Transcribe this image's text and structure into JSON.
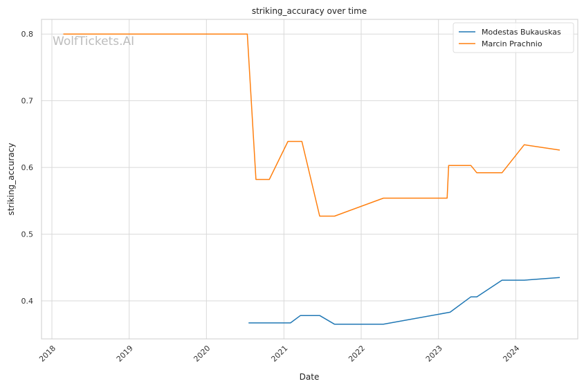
{
  "watermark": "WolfTickets.AI",
  "chart_data": {
    "type": "line",
    "title": "striking_accuracy over time",
    "xlabel": "Date",
    "ylabel": "striking_accuracy",
    "x_type": "date",
    "xlim": [
      "2017-11-13",
      "2024-10-20"
    ],
    "ylim": [
      0.343,
      0.822
    ],
    "x_ticks": [
      "2018",
      "2019",
      "2020",
      "2021",
      "2022",
      "2023",
      "2024"
    ],
    "y_ticks": [
      "0.4",
      "0.5",
      "0.6",
      "0.7",
      "0.8"
    ],
    "grid": true,
    "legend_position": "top-right",
    "series": [
      {
        "name": "Modestas Bukauskas",
        "color": "#1f77b4",
        "points": [
          [
            "2020-07-18",
            0.367
          ],
          [
            "2021-02-01",
            0.367
          ],
          [
            "2021-03-20",
            0.378
          ],
          [
            "2021-06-19",
            0.378
          ],
          [
            "2021-08-28",
            0.365
          ],
          [
            "2022-04-16",
            0.365
          ],
          [
            "2023-02-25",
            0.383
          ],
          [
            "2023-06-03",
            0.406
          ],
          [
            "2023-07-01",
            0.406
          ],
          [
            "2023-10-28",
            0.431
          ],
          [
            "2024-02-10",
            0.431
          ],
          [
            "2024-07-27",
            0.435
          ]
        ]
      },
      {
        "name": "Marcin Prachnio",
        "color": "#ff7f0e",
        "points": [
          [
            "2018-02-24",
            0.8
          ],
          [
            "2020-07-12",
            0.8
          ],
          [
            "2020-08-22",
            0.582
          ],
          [
            "2020-10-24",
            0.582
          ],
          [
            "2021-01-20",
            0.639
          ],
          [
            "2021-03-27",
            0.639
          ],
          [
            "2021-06-19",
            0.527
          ],
          [
            "2021-08-28",
            0.527
          ],
          [
            "2022-04-16",
            0.554
          ],
          [
            "2023-02-11",
            0.554
          ],
          [
            "2023-02-18",
            0.603
          ],
          [
            "2023-06-03",
            0.603
          ],
          [
            "2023-07-01",
            0.592
          ],
          [
            "2023-10-28",
            0.592
          ],
          [
            "2024-02-10",
            0.634
          ],
          [
            "2024-07-27",
            0.626
          ]
        ]
      }
    ]
  }
}
